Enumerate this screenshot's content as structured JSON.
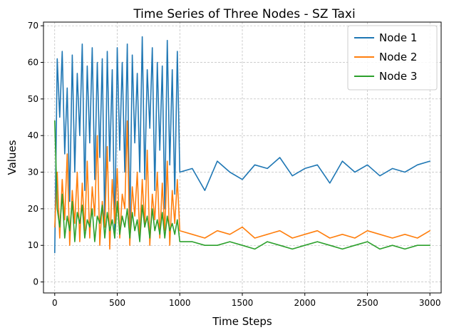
{
  "chart_data": {
    "type": "line",
    "title": "Time Series of Three Nodes - SZ Taxi",
    "xlabel": "Time Steps",
    "ylabel": "Values",
    "xlim": [
      -90,
      3090
    ],
    "ylim": [
      -3,
      71
    ],
    "xticks": [
      0,
      500,
      1000,
      1500,
      2000,
      2500,
      3000
    ],
    "yticks": [
      0,
      10,
      20,
      30,
      40,
      50,
      60,
      70
    ],
    "grid": true,
    "legend_position": "top-right",
    "series": [
      {
        "name": "Node 1",
        "color": "#1f77b4",
        "x": [
          0,
          20,
          40,
          60,
          80,
          100,
          120,
          140,
          160,
          180,
          200,
          220,
          240,
          260,
          280,
          300,
          320,
          340,
          360,
          380,
          400,
          420,
          440,
          460,
          480,
          500,
          520,
          540,
          560,
          580,
          600,
          620,
          640,
          660,
          680,
          700,
          720,
          740,
          760,
          780,
          800,
          820,
          840,
          860,
          880,
          900,
          920,
          940,
          960,
          980,
          1000,
          1100,
          1200,
          1300,
          1400,
          1500,
          1600,
          1700,
          1800,
          1900,
          2000,
          2100,
          2200,
          2300,
          2400,
          2500,
          2600,
          2700,
          2800,
          2900,
          3000
        ],
        "values": [
          8,
          61,
          45,
          63,
          35,
          53,
          22,
          62,
          30,
          57,
          40,
          65,
          25,
          59,
          38,
          64,
          28,
          60,
          34,
          61,
          15,
          63,
          33,
          58,
          12,
          64,
          36,
          60,
          30,
          65,
          14,
          62,
          38,
          57,
          30,
          67,
          28,
          58,
          42,
          64,
          25,
          60,
          36,
          59,
          20,
          66,
          32,
          58,
          24,
          63,
          30,
          31,
          25,
          33,
          30,
          28,
          32,
          31,
          34,
          29,
          31,
          32,
          27,
          33,
          30,
          32,
          29,
          31,
          30,
          32,
          33
        ]
      },
      {
        "name": "Node 2",
        "color": "#ff7f0e",
        "x": [
          0,
          20,
          40,
          60,
          80,
          100,
          120,
          140,
          160,
          180,
          200,
          220,
          240,
          260,
          280,
          300,
          320,
          340,
          360,
          380,
          400,
          420,
          440,
          460,
          480,
          500,
          520,
          540,
          560,
          580,
          600,
          620,
          640,
          660,
          680,
          700,
          720,
          740,
          760,
          780,
          800,
          820,
          840,
          860,
          880,
          900,
          920,
          940,
          960,
          980,
          1000,
          1100,
          1200,
          1300,
          1400,
          1500,
          1600,
          1700,
          1800,
          1900,
          2000,
          2100,
          2200,
          2300,
          2400,
          2500,
          2600,
          2700,
          2800,
          2900,
          3000
        ],
        "values": [
          15,
          30,
          12,
          28,
          17,
          35,
          10,
          25,
          16,
          30,
          11,
          27,
          14,
          33,
          12,
          26,
          18,
          40,
          10,
          22,
          15,
          37,
          9,
          28,
          16,
          31,
          12,
          24,
          20,
          44,
          10,
          26,
          18,
          30,
          12,
          28,
          15,
          36,
          10,
          24,
          17,
          30,
          12,
          27,
          14,
          33,
          10,
          25,
          16,
          28,
          14,
          13,
          12,
          14,
          13,
          15,
          12,
          13,
          14,
          12,
          13,
          14,
          12,
          13,
          12,
          14,
          13,
          12,
          13,
          12,
          14
        ]
      },
      {
        "name": "Node 3",
        "color": "#2ca02c",
        "x": [
          0,
          20,
          40,
          60,
          80,
          100,
          120,
          140,
          160,
          180,
          200,
          220,
          240,
          260,
          280,
          300,
          320,
          340,
          360,
          380,
          400,
          420,
          440,
          460,
          480,
          500,
          520,
          540,
          560,
          580,
          600,
          620,
          640,
          660,
          680,
          700,
          720,
          740,
          760,
          780,
          800,
          820,
          840,
          860,
          880,
          900,
          920,
          940,
          960,
          980,
          1000,
          1100,
          1200,
          1300,
          1400,
          1500,
          1600,
          1700,
          1800,
          1900,
          2000,
          2100,
          2200,
          2300,
          2400,
          2500,
          2600,
          2700,
          2800,
          2900,
          3000
        ],
        "values": [
          44,
          20,
          15,
          24,
          12,
          18,
          14,
          22,
          11,
          19,
          16,
          21,
          12,
          17,
          15,
          20,
          11,
          18,
          16,
          21,
          12,
          19,
          14,
          17,
          12,
          22,
          13,
          18,
          15,
          20,
          12,
          19,
          14,
          17,
          11,
          21,
          15,
          18,
          12,
          20,
          14,
          17,
          13,
          19,
          12,
          18,
          14,
          16,
          13,
          17,
          11,
          11,
          10,
          10,
          11,
          10,
          9,
          11,
          10,
          9,
          10,
          11,
          10,
          9,
          10,
          11,
          9,
          10,
          9,
          10,
          10
        ]
      }
    ]
  }
}
